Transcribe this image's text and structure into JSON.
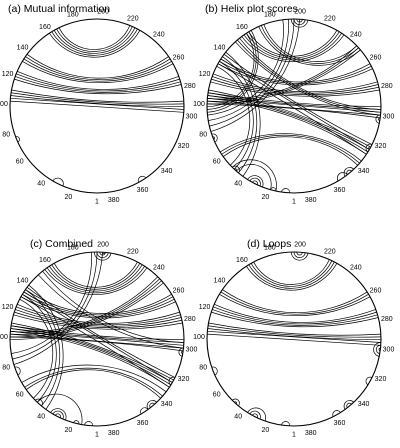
{
  "figure": {
    "panels": [
      {
        "id": "a",
        "title": "(a) Mutual information"
      },
      {
        "id": "b",
        "title": "(b) Helix plot scores"
      },
      {
        "id": "c",
        "title": "(c) Combined"
      },
      {
        "id": "d",
        "title": "(d) Loops"
      }
    ],
    "sequence_ticks": [
      "1",
      "20",
      "40",
      "60",
      "80",
      "100",
      "120",
      "140",
      "160",
      "180",
      "200",
      "220",
      "240",
      "260",
      "280",
      "300",
      "320",
      "340",
      "360",
      "380"
    ],
    "sequence_length": 390,
    "colors": {
      "stroke": "#000000",
      "background": "#ffffff"
    }
  }
}
